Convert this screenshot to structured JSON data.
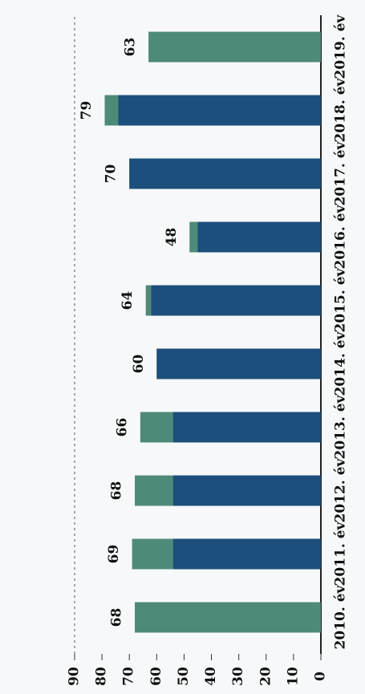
{
  "chart_data": {
    "type": "bar",
    "overlay": true,
    "categories": [
      "2010. év",
      "2011. év",
      "2012. év",
      "2013. év",
      "2014. év",
      "2015. év",
      "2016. év",
      "2017. év",
      "2018. év",
      "2019. év"
    ],
    "series": [
      {
        "color": "#4e8a78",
        "values": [
          68,
          69,
          68,
          66,
          60,
          64,
          48,
          70,
          79,
          63
        ]
      },
      {
        "color": "#1c4f7c",
        "values": [
          null,
          54,
          54,
          54,
          60,
          62,
          45,
          70,
          74,
          null
        ]
      }
    ],
    "ylim": [
      0,
      90
    ],
    "yticks": [
      0,
      10,
      20,
      30,
      40,
      50,
      60,
      70,
      80,
      90
    ]
  }
}
